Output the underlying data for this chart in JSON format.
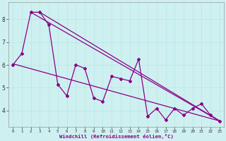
{
  "background_color": "#cff0f0",
  "grid_color": "#b8e8e8",
  "line_color": "#880088",
  "xlabel": "Windchill (Refroidissement éolien,°C)",
  "x_all": [
    0,
    1,
    2,
    3,
    4,
    5,
    6,
    7,
    8,
    9,
    10,
    11,
    12,
    13,
    14,
    15,
    16,
    17,
    18,
    19,
    20,
    21,
    22,
    23
  ],
  "y_zigzag": [
    6.0,
    6.5,
    8.3,
    8.3,
    7.75,
    5.15,
    4.65,
    6.0,
    5.85,
    4.55,
    4.4,
    5.5,
    5.4,
    5.3,
    6.25,
    3.75,
    4.1,
    3.6,
    4.1,
    3.8,
    4.1,
    4.3,
    3.8,
    3.55
  ],
  "trend1_x": [
    0,
    23
  ],
  "trend1_y": [
    6.05,
    3.55
  ],
  "trend2_x": [
    2,
    23
  ],
  "trend2_y": [
    8.3,
    3.55
  ],
  "trend3_x": [
    3,
    23
  ],
  "trend3_y": [
    8.3,
    3.55
  ],
  "ylim": [
    3.3,
    8.75
  ],
  "xlim": [
    -0.5,
    23.5
  ],
  "yticks": [
    4,
    5,
    6,
    7,
    8
  ],
  "xticks": [
    0,
    1,
    2,
    3,
    4,
    5,
    6,
    7,
    8,
    9,
    10,
    11,
    12,
    13,
    14,
    15,
    16,
    17,
    18,
    19,
    20,
    21,
    22,
    23
  ]
}
